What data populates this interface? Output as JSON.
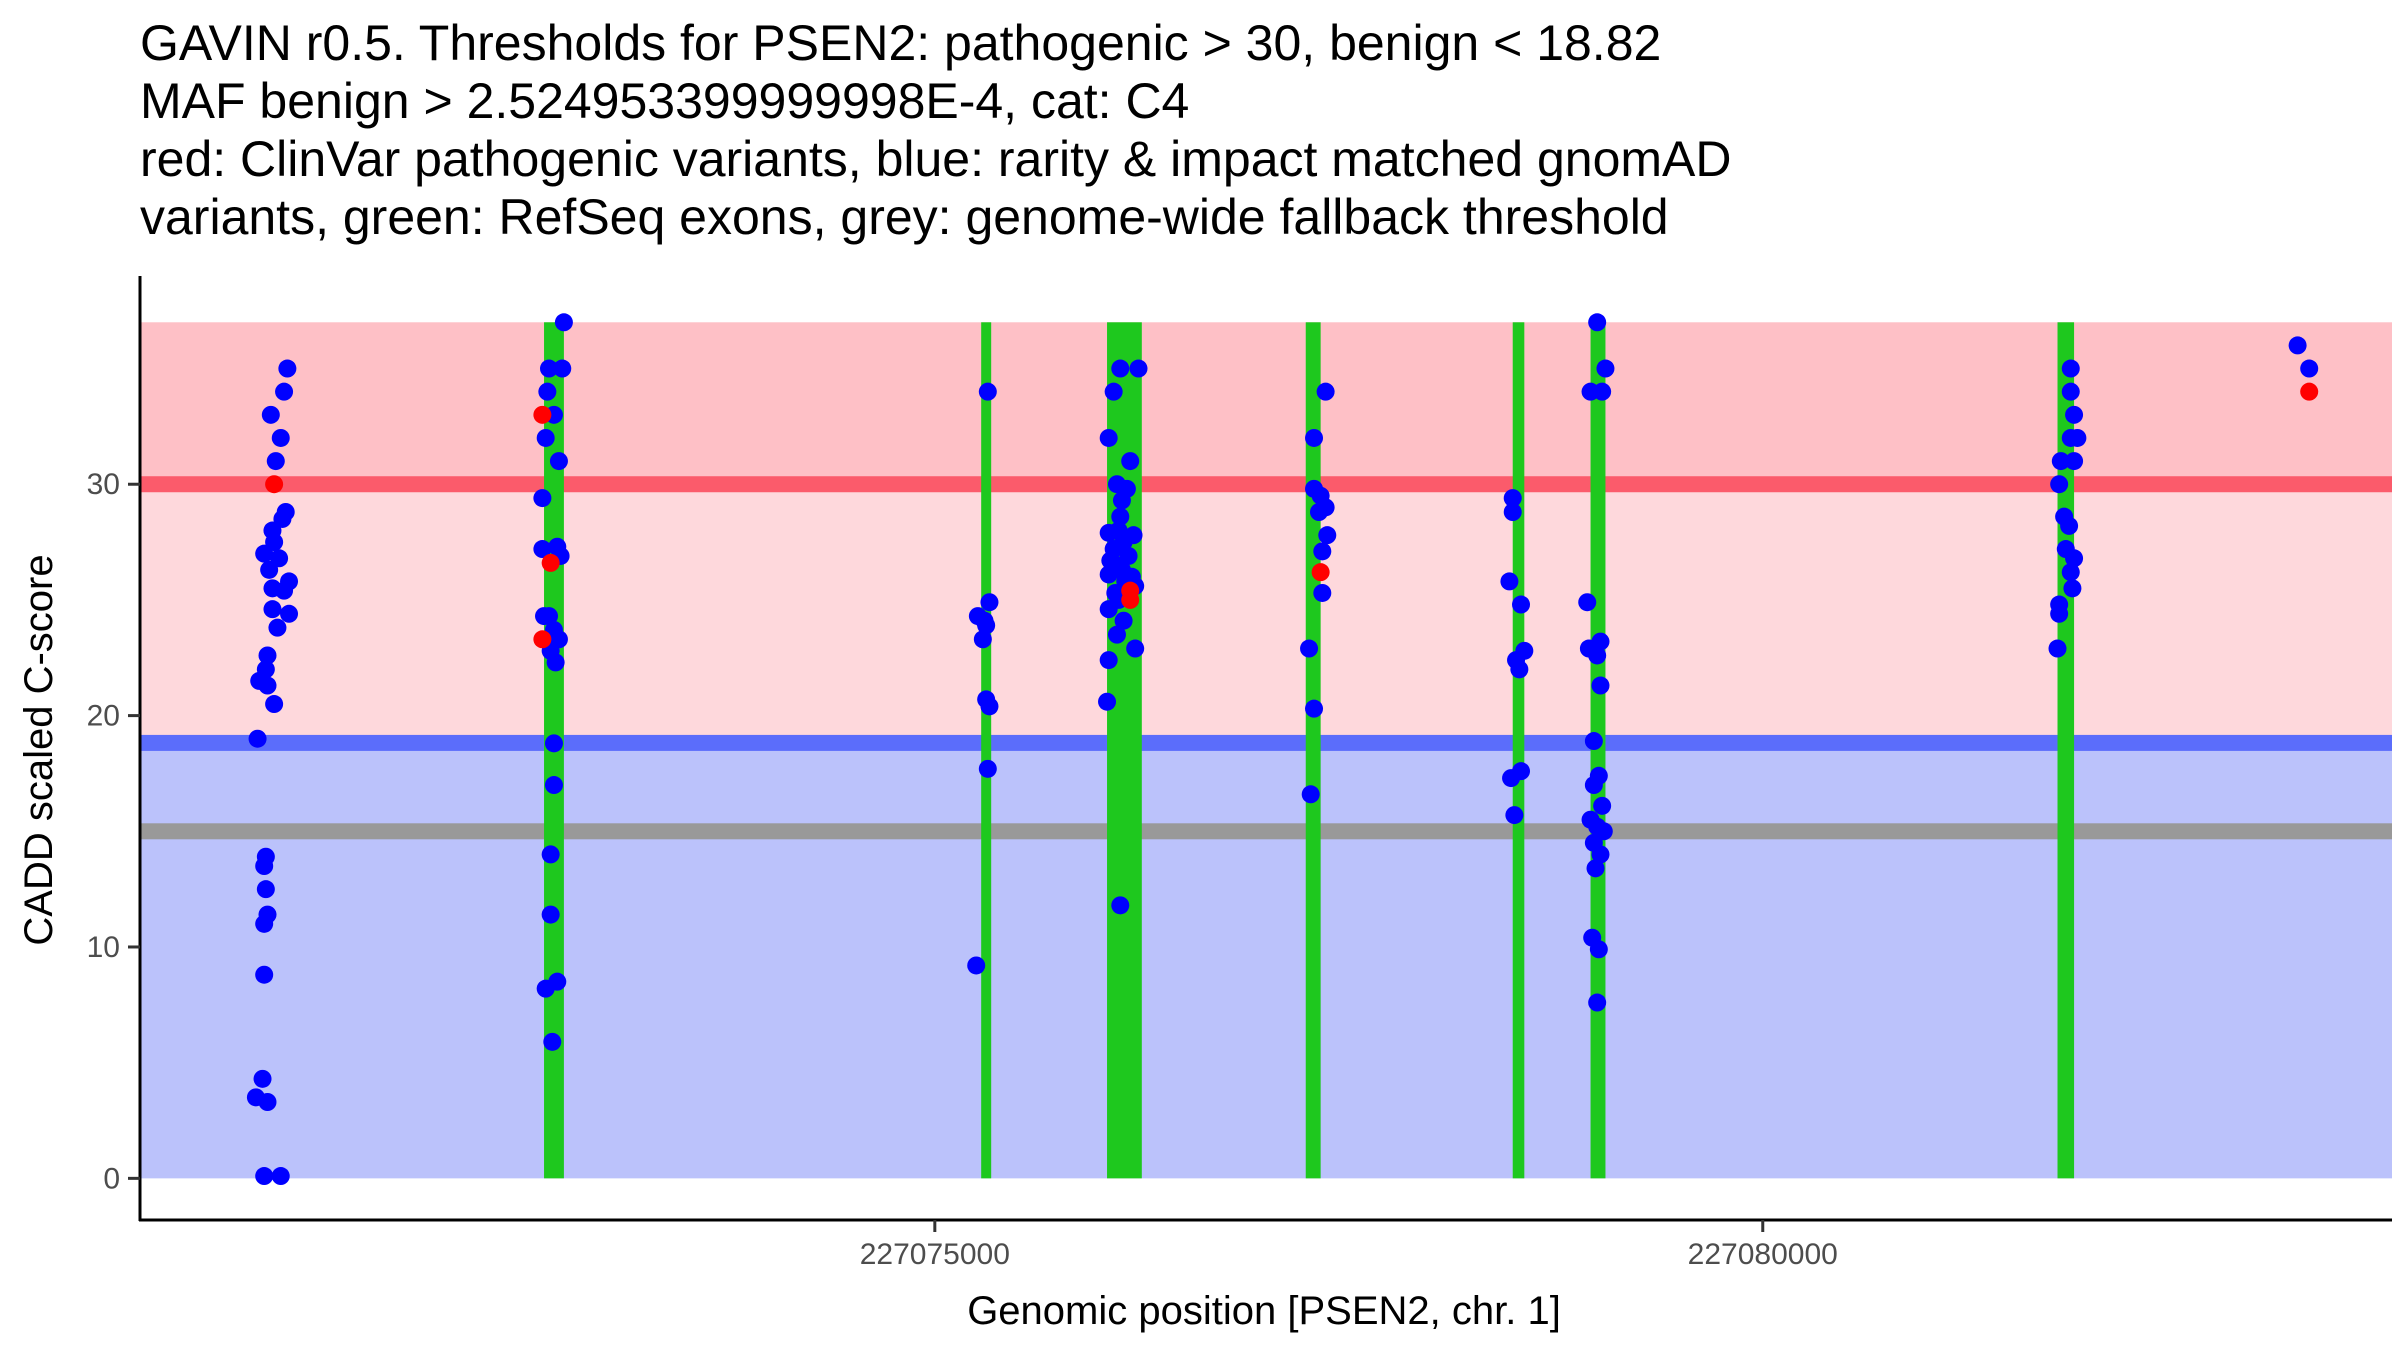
{
  "title_lines": [
    "GAVIN r0.5. Thresholds for PSEN2: pathogenic > 30, benign < 18.82",
    "MAF benign > 2.524953399999998E-4, cat: C4",
    "red: ClinVar pathogenic variants, blue: rarity & impact matched gnomAD",
    "variants, green: RefSeq exons, grey: genome-wide fallback threshold"
  ],
  "chart_data": {
    "type": "scatter",
    "xlabel": "Genomic position [PSEN2, chr. 1]",
    "ylabel": "CADD scaled C-score",
    "xlim": [
      227070200,
      227083800
    ],
    "ylim": [
      -1.8,
      39
    ],
    "x_ticks": [
      227075000,
      227080000
    ],
    "x_tick_labels": [
      "227075000",
      "227080000"
    ],
    "y_ticks": [
      0,
      10,
      20,
      30
    ],
    "y_tick_labels": [
      "0",
      "10",
      "20",
      "30"
    ],
    "grid": false,
    "colors": {
      "pathogenic_zone": "#fec0c6",
      "intermediate_zone": "#fed8dc",
      "benign_zone": "#bbc2fb",
      "pathogenic_line": "#fb5b6b",
      "benign_line": "#5b6dfb",
      "fallback_line": "#999999",
      "exon": "#1ec81e",
      "pathogenic_point": "#ff0000",
      "benign_point": "#0000ff"
    },
    "zones": [
      {
        "name": "pathogenic",
        "y_from": 30,
        "y_to": 37
      },
      {
        "name": "intermediate",
        "y_from": 18.82,
        "y_to": 30
      },
      {
        "name": "benign",
        "y_from": 0,
        "y_to": 18.82
      }
    ],
    "thresholds": [
      {
        "name": "pathogenic",
        "y": 30
      },
      {
        "name": "benign",
        "y": 18.82
      },
      {
        "name": "genome-wide fallback",
        "y": 15
      }
    ],
    "exons": [
      [
        227072640,
        227072760
      ],
      [
        227075280,
        227075330
      ],
      [
        227076040,
        227076250
      ],
      [
        227077240,
        227077330
      ],
      [
        227078490,
        227078560
      ],
      [
        227078960,
        227079050
      ],
      [
        227081780,
        227081880
      ]
    ],
    "series": [
      {
        "name": "ClinVar pathogenic variants",
        "color": "#ff0000",
        "points": [
          {
            "x": 227071010,
            "y": 30
          },
          {
            "x": 227072630,
            "y": 33
          },
          {
            "x": 227072680,
            "y": 26.6
          },
          {
            "x": 227072630,
            "y": 23.3
          },
          {
            "x": 227076180,
            "y": 25.4
          },
          {
            "x": 227076180,
            "y": 25
          },
          {
            "x": 227077330,
            "y": 26.2
          },
          {
            "x": 227083300,
            "y": 34
          }
        ]
      },
      {
        "name": "gnomAD benign variants",
        "color": "#0000ff",
        "points": [
          {
            "x": 227071090,
            "y": 35
          },
          {
            "x": 227071070,
            "y": 34
          },
          {
            "x": 227070990,
            "y": 33
          },
          {
            "x": 227071050,
            "y": 32
          },
          {
            "x": 227071020,
            "y": 31
          },
          {
            "x": 227071080,
            "y": 28.8
          },
          {
            "x": 227071000,
            "y": 28
          },
          {
            "x": 227071060,
            "y": 28.5
          },
          {
            "x": 227071010,
            "y": 27.5
          },
          {
            "x": 227070950,
            "y": 27
          },
          {
            "x": 227071040,
            "y": 26.8
          },
          {
            "x": 227070980,
            "y": 26.3
          },
          {
            "x": 227071100,
            "y": 25.8
          },
          {
            "x": 227071070,
            "y": 25.4
          },
          {
            "x": 227071000,
            "y": 25.5
          },
          {
            "x": 227071100,
            "y": 24.4
          },
          {
            "x": 227071000,
            "y": 24.6
          },
          {
            "x": 227071030,
            "y": 23.8
          },
          {
            "x": 227070970,
            "y": 22.6
          },
          {
            "x": 227070960,
            "y": 22
          },
          {
            "x": 227070920,
            "y": 21.5
          },
          {
            "x": 227070970,
            "y": 21.3
          },
          {
            "x": 227071010,
            "y": 20.5
          },
          {
            "x": 227070910,
            "y": 19
          },
          {
            "x": 227070960,
            "y": 13.9
          },
          {
            "x": 227070950,
            "y": 13.5
          },
          {
            "x": 227070960,
            "y": 12.5
          },
          {
            "x": 227070970,
            "y": 11.4
          },
          {
            "x": 227070950,
            "y": 11
          },
          {
            "x": 227070950,
            "y": 8.8
          },
          {
            "x": 227070940,
            "y": 4.3
          },
          {
            "x": 227070900,
            "y": 3.5
          },
          {
            "x": 227070970,
            "y": 3.3
          },
          {
            "x": 227070950,
            "y": 0.1
          },
          {
            "x": 227071050,
            "y": 0.1
          },
          {
            "x": 227072760,
            "y": 37
          },
          {
            "x": 227072670,
            "y": 35
          },
          {
            "x": 227072750,
            "y": 35
          },
          {
            "x": 227072660,
            "y": 34
          },
          {
            "x": 227072700,
            "y": 33
          },
          {
            "x": 227072650,
            "y": 32
          },
          {
            "x": 227072730,
            "y": 31
          },
          {
            "x": 227072630,
            "y": 29.4
          },
          {
            "x": 227072630,
            "y": 27.2
          },
          {
            "x": 227072720,
            "y": 27.3
          },
          {
            "x": 227072740,
            "y": 26.9
          },
          {
            "x": 227072640,
            "y": 24.3
          },
          {
            "x": 227072670,
            "y": 24.3
          },
          {
            "x": 227072700,
            "y": 23.7
          },
          {
            "x": 227072730,
            "y": 23.3
          },
          {
            "x": 227072680,
            "y": 22.8
          },
          {
            "x": 227072710,
            "y": 22.3
          },
          {
            "x": 227072700,
            "y": 18.8
          },
          {
            "x": 227072700,
            "y": 17
          },
          {
            "x": 227072680,
            "y": 14
          },
          {
            "x": 227072680,
            "y": 11.4
          },
          {
            "x": 227072720,
            "y": 8.5
          },
          {
            "x": 227072650,
            "y": 8.2
          },
          {
            "x": 227072690,
            "y": 5.9
          },
          {
            "x": 227075320,
            "y": 34
          },
          {
            "x": 227075330,
            "y": 24.9
          },
          {
            "x": 227075260,
            "y": 24.3
          },
          {
            "x": 227075300,
            "y": 24.1
          },
          {
            "x": 227075310,
            "y": 23.9
          },
          {
            "x": 227075290,
            "y": 23.3
          },
          {
            "x": 227075310,
            "y": 20.7
          },
          {
            "x": 227075330,
            "y": 20.4
          },
          {
            "x": 227075320,
            "y": 17.7
          },
          {
            "x": 227075250,
            "y": 9.2
          },
          {
            "x": 227076120,
            "y": 35
          },
          {
            "x": 227076230,
            "y": 35
          },
          {
            "x": 227076080,
            "y": 34
          },
          {
            "x": 227076050,
            "y": 32
          },
          {
            "x": 227076180,
            "y": 31
          },
          {
            "x": 227076100,
            "y": 30
          },
          {
            "x": 227076160,
            "y": 29.8
          },
          {
            "x": 227076130,
            "y": 29.3
          },
          {
            "x": 227076120,
            "y": 28.6
          },
          {
            "x": 227076110,
            "y": 28
          },
          {
            "x": 227076050,
            "y": 27.9
          },
          {
            "x": 227076200,
            "y": 27.8
          },
          {
            "x": 227076140,
            "y": 27.5
          },
          {
            "x": 227076080,
            "y": 27.2
          },
          {
            "x": 227076170,
            "y": 26.9
          },
          {
            "x": 227076060,
            "y": 26.7
          },
          {
            "x": 227076100,
            "y": 26.5
          },
          {
            "x": 227076130,
            "y": 26.3
          },
          {
            "x": 227076050,
            "y": 26.1
          },
          {
            "x": 227076190,
            "y": 26
          },
          {
            "x": 227076150,
            "y": 25.8
          },
          {
            "x": 227076210,
            "y": 25.6
          },
          {
            "x": 227076090,
            "y": 25.3
          },
          {
            "x": 227076110,
            "y": 25
          },
          {
            "x": 227076050,
            "y": 24.6
          },
          {
            "x": 227076140,
            "y": 24.1
          },
          {
            "x": 227076100,
            "y": 23.5
          },
          {
            "x": 227076210,
            "y": 22.9
          },
          {
            "x": 227076050,
            "y": 22.4
          },
          {
            "x": 227076040,
            "y": 20.6
          },
          {
            "x": 227076120,
            "y": 11.8
          },
          {
            "x": 227077360,
            "y": 34
          },
          {
            "x": 227077290,
            "y": 32
          },
          {
            "x": 227077290,
            "y": 29.8
          },
          {
            "x": 227077330,
            "y": 29.5
          },
          {
            "x": 227077360,
            "y": 29
          },
          {
            "x": 227077320,
            "y": 28.8
          },
          {
            "x": 227077370,
            "y": 27.8
          },
          {
            "x": 227077340,
            "y": 27.1
          },
          {
            "x": 227077340,
            "y": 25.3
          },
          {
            "x": 227077260,
            "y": 22.9
          },
          {
            "x": 227077290,
            "y": 20.3
          },
          {
            "x": 227077270,
            "y": 16.6
          },
          {
            "x": 227078490,
            "y": 29.4
          },
          {
            "x": 227078490,
            "y": 28.8
          },
          {
            "x": 227078470,
            "y": 25.8
          },
          {
            "x": 227078540,
            "y": 24.8
          },
          {
            "x": 227078560,
            "y": 22.8
          },
          {
            "x": 227078510,
            "y": 22.4
          },
          {
            "x": 227078530,
            "y": 22
          },
          {
            "x": 227078540,
            "y": 17.6
          },
          {
            "x": 227078480,
            "y": 17.3
          },
          {
            "x": 227078500,
            "y": 15.7
          },
          {
            "x": 227079000,
            "y": 37
          },
          {
            "x": 227079050,
            "y": 35
          },
          {
            "x": 227078960,
            "y": 34
          },
          {
            "x": 227079030,
            "y": 34
          },
          {
            "x": 227078940,
            "y": 24.9
          },
          {
            "x": 227078950,
            "y": 22.9
          },
          {
            "x": 227079020,
            "y": 23.2
          },
          {
            "x": 227079000,
            "y": 22.6
          },
          {
            "x": 227079020,
            "y": 21.3
          },
          {
            "x": 227078980,
            "y": 18.9
          },
          {
            "x": 227079010,
            "y": 17.4
          },
          {
            "x": 227078980,
            "y": 17
          },
          {
            "x": 227079030,
            "y": 16.1
          },
          {
            "x": 227078960,
            "y": 15.5
          },
          {
            "x": 227079000,
            "y": 15.2
          },
          {
            "x": 227079040,
            "y": 15
          },
          {
            "x": 227078980,
            "y": 14.5
          },
          {
            "x": 227079020,
            "y": 14
          },
          {
            "x": 227078990,
            "y": 13.4
          },
          {
            "x": 227078970,
            "y": 10.4
          },
          {
            "x": 227079010,
            "y": 9.9
          },
          {
            "x": 227079000,
            "y": 7.6
          },
          {
            "x": 227081860,
            "y": 35
          },
          {
            "x": 227081860,
            "y": 34
          },
          {
            "x": 227081880,
            "y": 33
          },
          {
            "x": 227081860,
            "y": 32
          },
          {
            "x": 227081900,
            "y": 32
          },
          {
            "x": 227081800,
            "y": 31
          },
          {
            "x": 227081880,
            "y": 31
          },
          {
            "x": 227081790,
            "y": 30
          },
          {
            "x": 227081820,
            "y": 28.6
          },
          {
            "x": 227081850,
            "y": 28.2
          },
          {
            "x": 227081830,
            "y": 27.2
          },
          {
            "x": 227081880,
            "y": 26.8
          },
          {
            "x": 227081860,
            "y": 26.2
          },
          {
            "x": 227081870,
            "y": 25.5
          },
          {
            "x": 227081790,
            "y": 24.8
          },
          {
            "x": 227081790,
            "y": 24.4
          },
          {
            "x": 227081780,
            "y": 22.9
          },
          {
            "x": 227083230,
            "y": 36
          },
          {
            "x": 227083300,
            "y": 35
          }
        ]
      }
    ]
  }
}
